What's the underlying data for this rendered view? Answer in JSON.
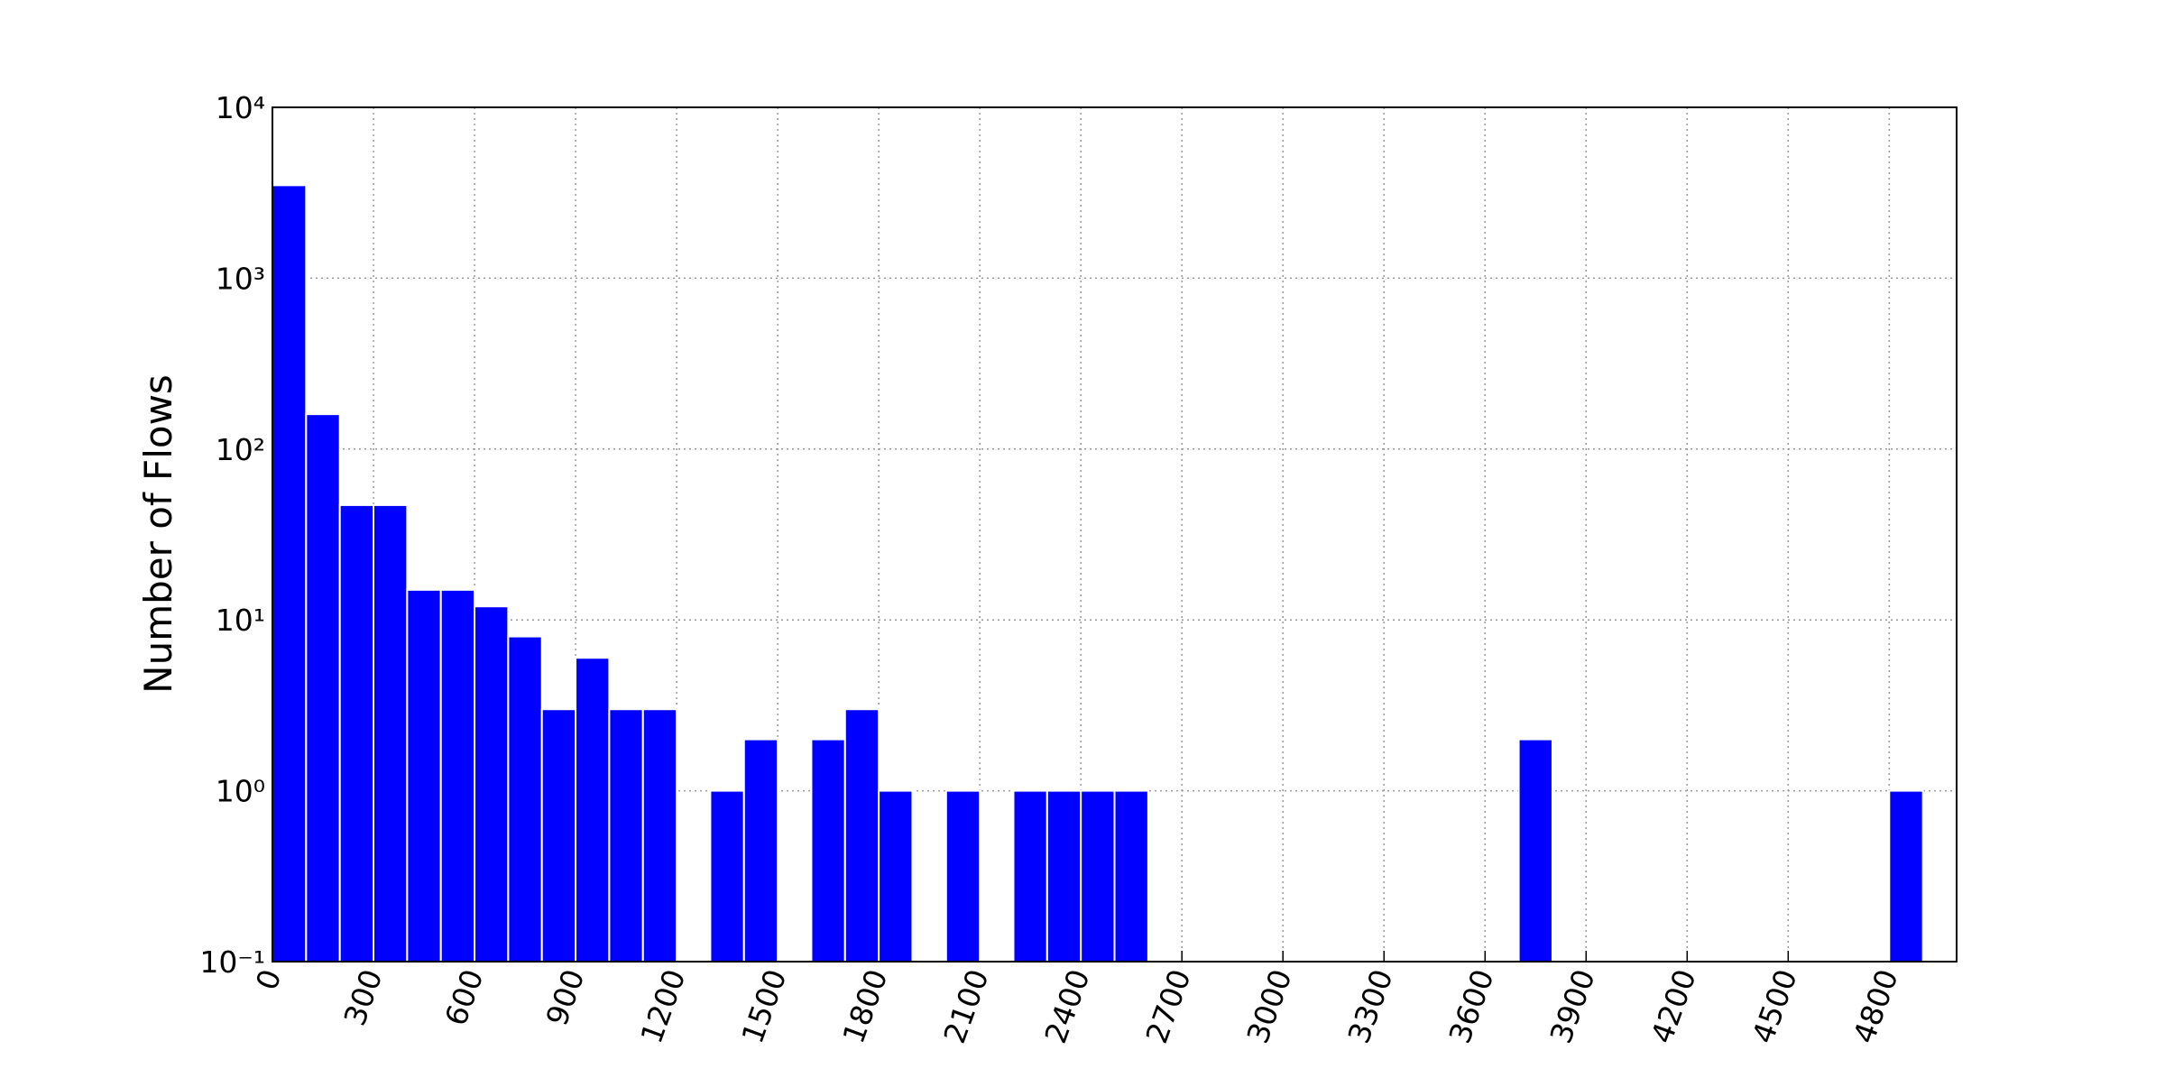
{
  "chart_data": {
    "type": "histogram",
    "y_label": "Number of Flows",
    "bins": [
      0,
      100,
      200,
      300,
      400,
      500,
      600,
      700,
      800,
      900,
      1000,
      1100,
      1200,
      1300,
      1400,
      1500,
      1600,
      1700,
      1800,
      1900,
      2000,
      2100,
      2200,
      2300,
      2400,
      2500,
      2600,
      2700,
      2800,
      2900,
      3000,
      3100,
      3200,
      3300,
      3400,
      3500,
      3600,
      3700,
      3800,
      3900,
      4000,
      4100,
      4200,
      4300,
      4400,
      4500,
      4600,
      4700,
      4800,
      4900
    ],
    "values": [
      3500,
      160,
      47,
      47,
      15,
      15,
      12,
      8,
      3,
      6,
      3,
      3,
      0,
      1,
      2,
      0,
      2,
      3,
      1,
      0,
      1,
      0,
      1,
      1,
      1,
      1,
      0,
      0,
      0,
      0,
      0,
      0,
      0,
      0,
      0,
      0,
      0,
      2,
      0,
      0,
      0,
      0,
      0,
      0,
      0,
      0,
      0,
      0,
      1
    ],
    "color": "#0000ff",
    "xlim": [
      0,
      5000
    ],
    "xticks": [
      0,
      300,
      600,
      900,
      1200,
      1500,
      1800,
      2100,
      2400,
      2700,
      3000,
      3300,
      3600,
      3900,
      4200,
      4500,
      4800
    ],
    "ylim": [
      0.1,
      10000
    ],
    "yscale": "log",
    "yticks": [
      {
        "value": 0.1,
        "label": "10⁻¹"
      },
      {
        "value": 1,
        "label": "10⁰"
      },
      {
        "value": 10,
        "label": "10¹"
      },
      {
        "value": 100,
        "label": "10²"
      },
      {
        "value": 1000,
        "label": "10³"
      },
      {
        "value": 10000,
        "label": "10⁴"
      }
    ],
    "grid": true
  }
}
